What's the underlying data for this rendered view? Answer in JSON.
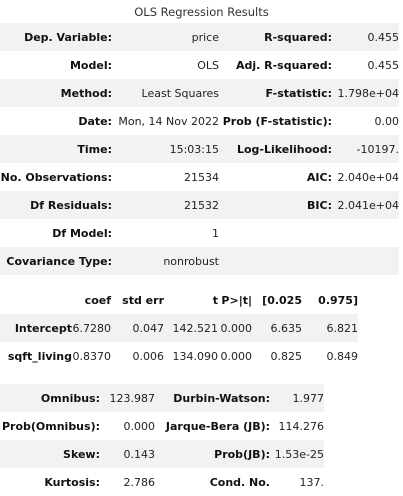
{
  "title": "OLS Regression Results",
  "summary": [
    {
      "k1": "Dep. Variable:",
      "v1": "price",
      "k2": "R-squared:",
      "v2": "0.455"
    },
    {
      "k1": "Model:",
      "v1": "OLS",
      "k2": "Adj. R-squared:",
      "v2": "0.455"
    },
    {
      "k1": "Method:",
      "v1": "Least Squares",
      "k2": "F-statistic:",
      "v2": "1.798e+04"
    },
    {
      "k1": "Date:",
      "v1": "Mon, 14 Nov 2022",
      "k2": "Prob (F-statistic):",
      "v2": "0.00"
    },
    {
      "k1": "Time:",
      "v1": "15:03:15",
      "k2": "Log-Likelihood:",
      "v2": "-10197."
    },
    {
      "k1": "No. Observations:",
      "v1": "21534",
      "k2": "AIC:",
      "v2": "2.040e+04"
    },
    {
      "k1": "Df Residuals:",
      "v1": "21532",
      "k2": "BIC:",
      "v2": "2.041e+04"
    },
    {
      "k1": "Df Model:",
      "v1": "1",
      "k2": "",
      "v2": ""
    },
    {
      "k1": "Covariance Type:",
      "v1": "nonrobust",
      "k2": "",
      "v2": ""
    }
  ],
  "coef_headers": [
    "",
    "coef",
    "std err",
    "t",
    "P>|t|",
    "[0.025",
    "0.975]"
  ],
  "coef_rows": [
    {
      "name": "Intercept",
      "coef": "6.7280",
      "std_err": "0.047",
      "t": "142.521",
      "p": "0.000",
      "lo": "6.635",
      "hi": "6.821"
    },
    {
      "name": "sqft_living",
      "coef": "0.8370",
      "std_err": "0.006",
      "t": "134.090",
      "p": "0.000",
      "lo": "0.825",
      "hi": "0.849"
    }
  ],
  "diagnostics": [
    {
      "k1": "Omnibus:",
      "v1": "123.987",
      "k2": "Durbin-Watson:",
      "v2": "1.977"
    },
    {
      "k1": "Prob(Omnibus):",
      "v1": "0.000",
      "k2": "Jarque-Bera (JB):",
      "v2": "114.276"
    },
    {
      "k1": "Skew:",
      "v1": "0.143",
      "k2": "Prob(JB):",
      "v2": "1.53e-25"
    },
    {
      "k1": "Kurtosis:",
      "v1": "2.786",
      "k2": "Cond. No.",
      "v2": "137."
    }
  ]
}
